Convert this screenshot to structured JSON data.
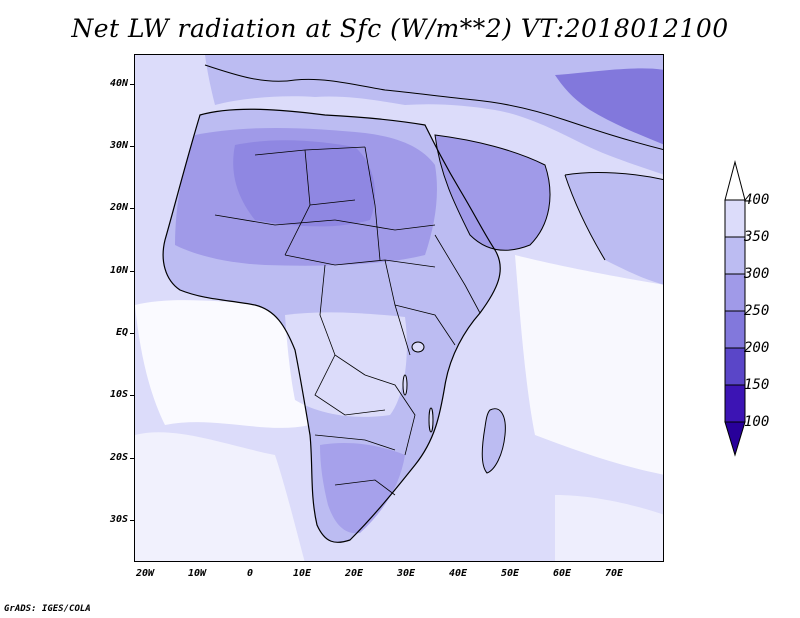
{
  "title": "Net LW radiation at Sfc (W/m**2) VT:2018012100",
  "credit": "GrADS: IGES/COLA",
  "lat_labels": [
    "40N",
    "30N",
    "20N",
    "10N",
    "EQ",
    "10S",
    "20S",
    "30S"
  ],
  "lon_labels": [
    "20W",
    "10W",
    "0",
    "10E",
    "20E",
    "30E",
    "40E",
    "50E",
    "60E",
    "70E"
  ],
  "colorbar": {
    "labels": [
      "400",
      "350",
      "300",
      "250",
      "200",
      "150",
      "100"
    ],
    "colors": [
      "#ffffff",
      "#dcdcfa",
      "#bcbcf2",
      "#a09ae8",
      "#8278dc",
      "#5a46c8",
      "#3c14b4",
      "#28009a"
    ]
  },
  "map": {
    "colors": {
      "ocean": "#dcdcfa",
      "ocean_light": "#ffffff",
      "land_mid": "#bcbcf2",
      "land_dark": "#a09ae8",
      "land_darker": "#8278dc",
      "border": "#000000"
    }
  }
}
